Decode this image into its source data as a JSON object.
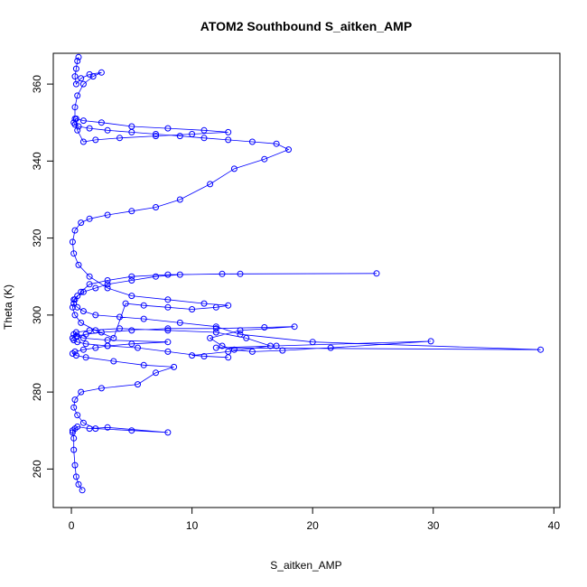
{
  "chart_data": {
    "type": "scatter",
    "title": "ATOM2 Southbound S_aitken_AMP",
    "xlabel": "S_aitken_AMP",
    "ylabel": "Theta (K)",
    "xlim": [
      -1.5,
      40.5
    ],
    "ylim": [
      250,
      368
    ],
    "xticks": [
      0,
      10,
      20,
      30,
      40
    ],
    "yticks": [
      260,
      280,
      300,
      320,
      340,
      360
    ],
    "grid": false,
    "legend": "none",
    "marker": "open-circle",
    "connect_points": true,
    "colors": {
      "series": "#0000ff",
      "axes": "#000000"
    },
    "series": [
      {
        "x": [
          0.9,
          0.6,
          0.4,
          0.3,
          0.2,
          0.2,
          0.1,
          0.1,
          0.3,
          0.5,
          1.5,
          3.0,
          8.0,
          5.0,
          2.0,
          1.0,
          0.5,
          0.2,
          0.3,
          0.8,
          2.5,
          5.5,
          7.0,
          8.5,
          6.0,
          3.5,
          1.2,
          0.4,
          0.1,
          0.3,
          1.0,
          2.0,
          3.0,
          5.0,
          8.0,
          3.0,
          1.0,
          0.5,
          0.2,
          0.4,
          1.5,
          4.0,
          8.0,
          12.0,
          14.5,
          16.5,
          13.0,
          10.0,
          13.0,
          11.0,
          8.0,
          5.5,
          3.0,
          1.2,
          0.5,
          0.2,
          0.1,
          0.4,
          1.2,
          2.5,
          5.0,
          8.0,
          12.0,
          16.0,
          18.5,
          14.0,
          11.5,
          12.5,
          13.5,
          15.0,
          17.5,
          21.5,
          29.8,
          17.0,
          12.0,
          38.9,
          20.0,
          14.0,
          12.0,
          9.0,
          6.0,
          4.0,
          2.0,
          1.0,
          0.5,
          0.2,
          0.2,
          0.5,
          1.0,
          2.0,
          3.0,
          5.0,
          7.0,
          9.0,
          12.5,
          25.3,
          14.0,
          8.0,
          5.0,
          3.0,
          1.5,
          0.8,
          0.3,
          0.1,
          0.3,
          0.8,
          2.0,
          3.5,
          4.5,
          6.0,
          8.0,
          10.0,
          12.0,
          13.0,
          11.0,
          8.0,
          5.0,
          3.0,
          1.5,
          0.6,
          0.2,
          0.1,
          0.3,
          0.8,
          1.5,
          3.0,
          5.0,
          7.0,
          9.0,
          11.5,
          13.5,
          16.0,
          18.0,
          17.0,
          15.0,
          13.0,
          11.0,
          9.0,
          7.0,
          5.0,
          3.0,
          1.5,
          0.6,
          0.3,
          0.2,
          0.4,
          1.0,
          2.5,
          5.0,
          8.0,
          11.0,
          13.0,
          10.0,
          7.0,
          4.0,
          2.0,
          1.0,
          0.5,
          0.3,
          0.3,
          0.5,
          1.0,
          1.8,
          2.5,
          1.5,
          0.8,
          0.4,
          0.3,
          0.4,
          0.5,
          0.6
        ],
        "y": [
          254.5,
          256.0,
          258.0,
          261.0,
          265.0,
          268.0,
          269.5,
          270.0,
          270.5,
          271.0,
          270.5,
          270.8,
          269.5,
          270.0,
          270.5,
          272.0,
          274.0,
          276.0,
          278.0,
          280.0,
          281.0,
          282.0,
          285.0,
          286.5,
          287.0,
          288.0,
          289.0,
          289.5,
          290.0,
          290.5,
          291.0,
          291.5,
          292.0,
          292.5,
          293.0,
          293.5,
          294.0,
          294.5,
          295.0,
          295.5,
          296.0,
          296.5,
          296.0,
          295.5,
          294.0,
          292.0,
          290.5,
          289.5,
          289.0,
          289.3,
          290.5,
          291.5,
          292.0,
          292.5,
          293.0,
          293.5,
          294.0,
          294.5,
          295.0,
          295.5,
          296.0,
          296.5,
          296.5,
          296.8,
          297.0,
          296.0,
          294.0,
          292.0,
          291.0,
          290.5,
          290.8,
          291.5,
          293.2,
          292.0,
          291.5,
          291.0,
          293.0,
          295.0,
          297.0,
          298.0,
          299.0,
          299.5,
          300.0,
          301.0,
          302.0,
          303.0,
          304.0,
          305.0,
          306.0,
          307.0,
          308.0,
          309.0,
          310.0,
          310.5,
          310.7,
          310.8,
          310.7,
          310.5,
          310.0,
          309.0,
          308.0,
          306.0,
          304.0,
          302.0,
          300.0,
          298.0,
          296.0,
          294.0,
          303.0,
          302.5,
          302.0,
          301.5,
          302.0,
          302.5,
          303.0,
          304.0,
          305.0,
          307.0,
          310.0,
          313.0,
          316.0,
          319.0,
          322.0,
          324.0,
          325.0,
          326.0,
          327.0,
          328.0,
          330.0,
          334.0,
          338.0,
          340.5,
          343.0,
          344.5,
          345.0,
          345.5,
          346.0,
          346.5,
          347.0,
          347.5,
          348.0,
          348.5,
          349.0,
          349.5,
          350.0,
          351.0,
          350.5,
          350.0,
          349.0,
          348.5,
          348.0,
          347.5,
          347.0,
          346.5,
          346.0,
          345.5,
          345.0,
          348.0,
          351.0,
          354.0,
          357.0,
          360.0,
          362.0,
          363.0,
          362.5,
          361.5,
          360.0,
          362.0,
          364.0,
          366.0,
          367.0
        ]
      }
    ]
  }
}
